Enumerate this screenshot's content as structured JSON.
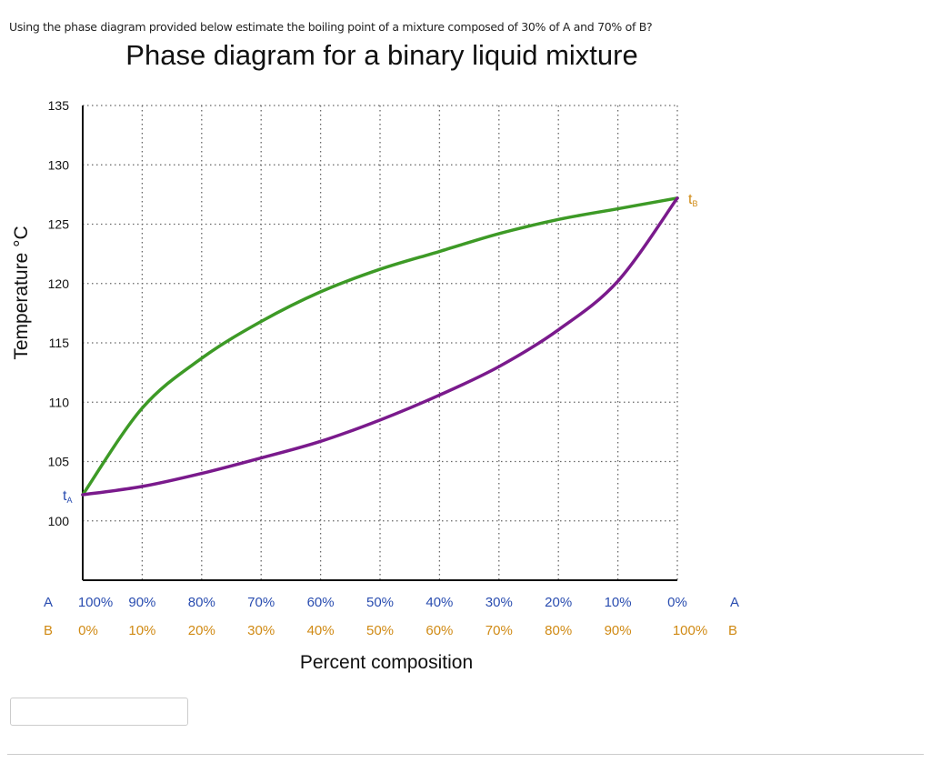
{
  "question": "Using the phase diagram provided below estimate the boiling point of a mixture composed of 30% of A and 70% of B?",
  "answer_input": {
    "value": "",
    "placeholder": ""
  },
  "chart_data": {
    "type": "line",
    "title": "Phase diagram for a binary liquid mixture",
    "xlabel": "Percent composition",
    "ylabel": "Temperature °C",
    "ylim": [
      95,
      135
    ],
    "yticks": [
      100,
      105,
      110,
      115,
      120,
      125,
      130,
      135
    ],
    "x_percent_B": [
      0,
      10,
      20,
      30,
      40,
      50,
      60,
      70,
      80,
      90,
      100
    ],
    "x_row_A": {
      "label": "A",
      "ticks": [
        "100%",
        "90%",
        "80%",
        "70%",
        "60%",
        "50%",
        "40%",
        "30%",
        "20%",
        "10%",
        "0%"
      ],
      "end_label": "A",
      "color": "#2a4db0"
    },
    "x_row_B": {
      "label": "B",
      "ticks": [
        "0%",
        "10%",
        "20%",
        "30%",
        "40%",
        "50%",
        "60%",
        "70%",
        "80%",
        "90%",
        "100%"
      ],
      "end_label": "B",
      "color": "#d08a14"
    },
    "grid": true,
    "series": [
      {
        "color": "#3d9a26",
        "values": [
          102.2,
          109.5,
          113.7,
          116.8,
          119.3,
          121.2,
          122.7,
          124.2,
          125.4,
          126.3,
          127.2
        ]
      },
      {
        "color": "#7a1a8c",
        "values": [
          102.2,
          102.9,
          104.0,
          105.3,
          106.7,
          108.5,
          110.6,
          113.0,
          116.1,
          120.2,
          127.2
        ]
      }
    ],
    "annotations": [
      {
        "text": "t",
        "sub": "A",
        "x": 0,
        "y": 102.2,
        "color": "#2a4db0"
      },
      {
        "text": "t",
        "sub": "B",
        "x": 100,
        "y": 127.2,
        "color": "#d08a14"
      }
    ]
  }
}
